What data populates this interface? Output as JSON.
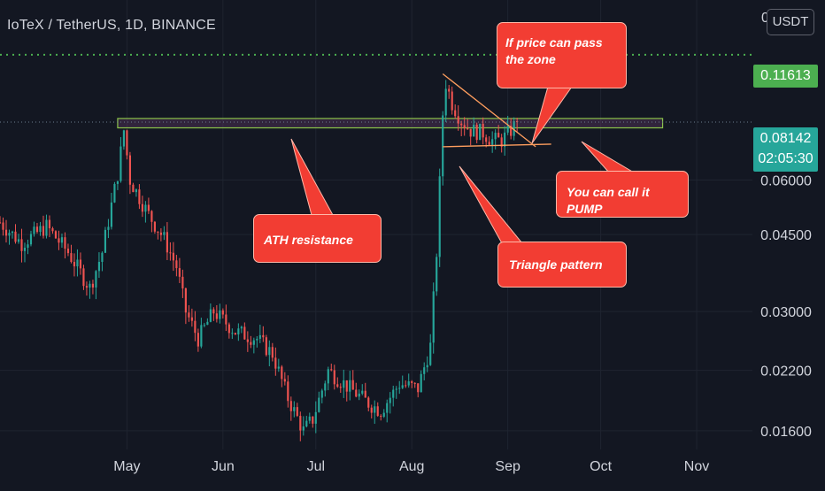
{
  "header": {
    "title": "IoTeX / TetherUS, 1D, BINANCE",
    "currency_button": "USDT",
    "top_axis_fragment": "0"
  },
  "price_tags": {
    "resistance_target": "0.11613",
    "last_price": "0.08142",
    "countdown": "02:05:30"
  },
  "colors": {
    "background": "#131722",
    "up": "#26a69a",
    "down": "#ef5350",
    "callout": "#f23d33",
    "zone_line": "#8bc34a",
    "target_line": "#4caf50",
    "last_price_bg": "#26a69a"
  },
  "annotations": {
    "ath_resistance": "ATH resistance",
    "triangle_pattern": "Triangle pattern",
    "pump": "You can call it PUMP",
    "pass_zone": "If price can pass the zone"
  },
  "chart_data": {
    "type": "candlestick",
    "title": "IoTeX / TetherUS, 1D, BINANCE",
    "y_scale": "log",
    "ylim": [
      0.0145,
      0.155
    ],
    "y_ticks": [
      {
        "value": 0.016,
        "label": "0.01600"
      },
      {
        "value": 0.022,
        "label": "0.02200"
      },
      {
        "value": 0.03,
        "label": "0.03000"
      },
      {
        "value": 0.045,
        "label": "0.04500"
      },
      {
        "value": 0.06,
        "label": "0.06000"
      }
    ],
    "x_ticks": [
      {
        "date": "2021-05-01",
        "label": "May"
      },
      {
        "date": "2021-06-01",
        "label": "Jun"
      },
      {
        "date": "2021-07-01",
        "label": "Jul"
      },
      {
        "date": "2021-08-01",
        "label": "Aug"
      },
      {
        "date": "2021-09-01",
        "label": "Sep"
      },
      {
        "date": "2021-10-01",
        "label": "Oct"
      },
      {
        "date": "2021-11-01",
        "label": "Nov"
      }
    ],
    "xlim": [
      "2021-03-21",
      "2021-11-19"
    ],
    "horizontal_levels": [
      {
        "value": 0.11613,
        "style": "dotted"
      },
      {
        "value": 0.08142,
        "style": "dotted"
      }
    ],
    "resistance_zone": {
      "low": 0.079,
      "high": 0.083,
      "from": "2021-04-28",
      "to": "2021-10-21"
    },
    "triangle": {
      "upper": [
        {
          "date": "2021-08-11",
          "value": 0.105
        },
        {
          "date": "2021-09-10",
          "value": 0.0715
        }
      ],
      "lower": [
        {
          "date": "2021-08-11",
          "value": 0.0715
        },
        {
          "date": "2021-09-15",
          "value": 0.0725
        }
      ]
    },
    "anchors": [
      {
        "date": "2021-03-21",
        "price": 0.048
      },
      {
        "date": "2021-03-28",
        "price": 0.043
      },
      {
        "date": "2021-04-05",
        "price": 0.047
      },
      {
        "date": "2021-04-12",
        "price": 0.041
      },
      {
        "date": "2021-04-19",
        "price": 0.034
      },
      {
        "date": "2021-04-23",
        "price": 0.041
      },
      {
        "date": "2021-04-28",
        "price": 0.062
      },
      {
        "date": "2021-04-30",
        "price": 0.078
      },
      {
        "date": "2021-05-02",
        "price": 0.06
      },
      {
        "date": "2021-05-08",
        "price": 0.05
      },
      {
        "date": "2021-05-13",
        "price": 0.044
      },
      {
        "date": "2021-05-17",
        "price": 0.038
      },
      {
        "date": "2021-05-20",
        "price": 0.03
      },
      {
        "date": "2021-05-24",
        "price": 0.026
      },
      {
        "date": "2021-05-29",
        "price": 0.03
      },
      {
        "date": "2021-06-05",
        "price": 0.027
      },
      {
        "date": "2021-06-12",
        "price": 0.026
      },
      {
        "date": "2021-06-17",
        "price": 0.024
      },
      {
        "date": "2021-06-22",
        "price": 0.019
      },
      {
        "date": "2021-06-27",
        "price": 0.016
      },
      {
        "date": "2021-06-30",
        "price": 0.017
      },
      {
        "date": "2021-07-05",
        "price": 0.022
      },
      {
        "date": "2021-07-12",
        "price": 0.02
      },
      {
        "date": "2021-07-18",
        "price": 0.0185
      },
      {
        "date": "2021-07-22",
        "price": 0.0178
      },
      {
        "date": "2021-07-28",
        "price": 0.0205
      },
      {
        "date": "2021-08-03",
        "price": 0.02
      },
      {
        "date": "2021-08-07",
        "price": 0.025
      },
      {
        "date": "2021-08-09",
        "price": 0.041
      },
      {
        "date": "2021-08-11",
        "price": 0.085
      },
      {
        "date": "2021-08-12",
        "price": 0.1
      },
      {
        "date": "2021-08-14",
        "price": 0.09
      },
      {
        "date": "2021-08-17",
        "price": 0.082
      },
      {
        "date": "2021-08-20",
        "price": 0.078
      },
      {
        "date": "2021-08-24",
        "price": 0.077
      },
      {
        "date": "2021-08-27",
        "price": 0.074
      },
      {
        "date": "2021-08-30",
        "price": 0.074
      },
      {
        "date": "2021-09-02",
        "price": 0.078
      },
      {
        "date": "2021-09-04",
        "price": 0.08142
      }
    ]
  }
}
